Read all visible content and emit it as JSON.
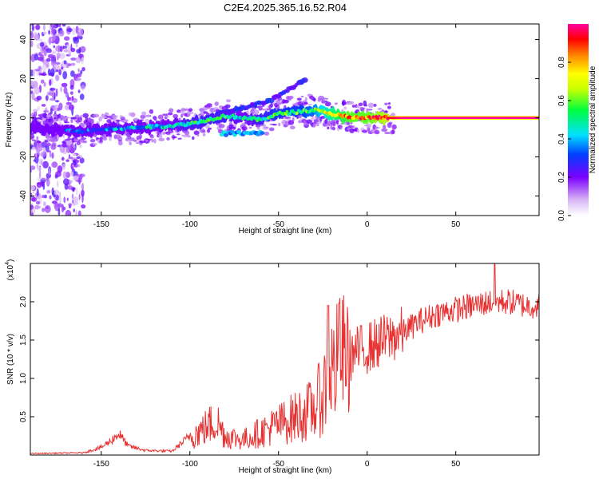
{
  "title": "C2E4.2025.365.16.52.R04",
  "chart_data": [
    {
      "type": "heatmap",
      "xlabel": "Height of straight line (km)",
      "ylabel": "Frequency (Hz)",
      "xlim": [
        -190,
        97
      ],
      "ylim": [
        -50,
        48
      ],
      "xticks": [
        "-150",
        "-100",
        "-50",
        "0",
        "50"
      ],
      "xtick_values": [
        -150,
        -100,
        -50,
        0,
        50
      ],
      "yticks": [
        "40",
        "20",
        "0",
        "-20",
        "-40"
      ],
      "ytick_values": [
        40,
        20,
        0,
        -20,
        -40
      ],
      "colorbar": {
        "label": "Normalized spectral amplitude",
        "ticks": [
          "0.0",
          "0.2",
          "0.4",
          "0.6",
          "0.8"
        ],
        "tick_values": [
          0,
          0.2,
          0.4,
          0.6,
          0.8
        ],
        "range": [
          0,
          1
        ]
      },
      "ridge": {
        "x": [
          -190,
          -165,
          -150,
          -130,
          -110,
          -100,
          -90,
          -80,
          -70,
          -60,
          -50,
          -40,
          -30,
          -20,
          -10,
          0,
          10,
          20,
          50,
          97
        ],
        "freq": [
          -5,
          -7,
          -6,
          -5,
          -4,
          -3,
          -1,
          1,
          0,
          -1,
          2,
          3,
          4,
          2,
          0,
          0,
          0,
          0,
          0,
          0
        ],
        "amplitude": [
          0.2,
          0.3,
          0.35,
          0.4,
          0.45,
          0.5,
          0.5,
          0.5,
          0.45,
          0.5,
          0.55,
          0.55,
          0.6,
          0.75,
          0.85,
          0.85,
          0.9,
          1.0,
          1.0,
          1.0
        ]
      },
      "branch": {
        "x": [
          -85,
          -70,
          -55,
          -45,
          -35
        ],
        "freq": [
          2,
          5,
          9,
          14,
          20
        ]
      }
    },
    {
      "type": "line",
      "xlabel": "Height of straight line (km)",
      "ylabel": "SNR (10 * v/v)",
      "multiplier": "(x10",
      "multiplier_exp": "4",
      "multiplier_close": ")",
      "xlim": [
        -190,
        97
      ],
      "ylim": [
        0,
        2.5
      ],
      "xticks": [
        "-150",
        "-100",
        "-50",
        "0",
        "50"
      ],
      "xtick_values": [
        -150,
        -100,
        -50,
        0,
        50
      ],
      "yticks": [
        "0.5",
        "1.0",
        "1.5",
        "2.0"
      ],
      "ytick_values": [
        0.5,
        1.0,
        1.5,
        2.0
      ],
      "color": "#e83030",
      "envelope": {
        "x": [
          -190,
          -160,
          -150,
          -145,
          -140,
          -135,
          -125,
          -110,
          -100,
          -95,
          -85,
          -80,
          -70,
          -60,
          -50,
          -40,
          -30,
          -25,
          -20,
          -15,
          -10,
          -5,
          0,
          10,
          20,
          30,
          40,
          50,
          60,
          70,
          80,
          90,
          97
        ],
        "y": [
          0.02,
          0.03,
          0.1,
          0.18,
          0.28,
          0.12,
          0.06,
          0.05,
          0.25,
          0.3,
          0.45,
          0.25,
          0.2,
          0.3,
          0.4,
          0.5,
          0.6,
          0.8,
          1.1,
          1.25,
          1.3,
          1.35,
          1.4,
          1.5,
          1.6,
          1.75,
          1.85,
          1.9,
          1.95,
          2.0,
          2.0,
          1.95,
          1.95
        ]
      },
      "spikes": [
        {
          "x": -22,
          "y": 1.95
        },
        {
          "x": -16,
          "y": 1.98
        },
        {
          "x": -12,
          "y": 0.9
        },
        {
          "x": 72,
          "y": 2.5
        }
      ]
    }
  ]
}
